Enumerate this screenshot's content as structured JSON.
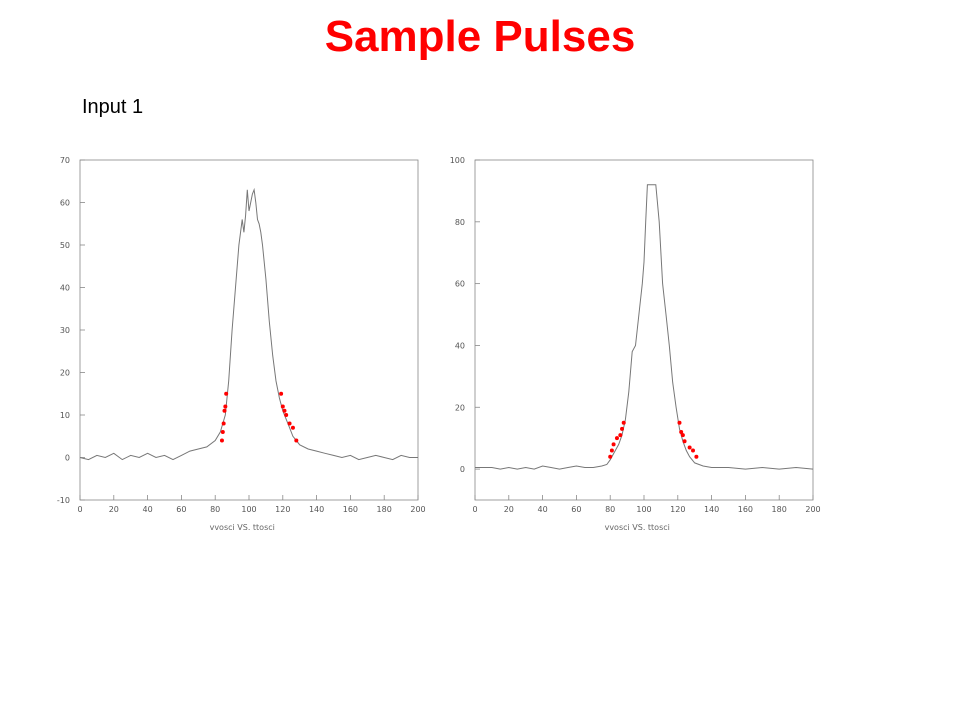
{
  "slide": {
    "title": "Sample Pulses",
    "subtitle": "Input 1",
    "accent_color": "#ff0000"
  },
  "chart_data": [
    {
      "type": "line",
      "xlabel": "vvosci VS. ttosci",
      "ylabel": "",
      "xlim": [
        0,
        200
      ],
      "ylim": [
        -10,
        70
      ],
      "xticks": [
        0,
        20,
        40,
        60,
        80,
        100,
        120,
        140,
        160,
        180,
        200
      ],
      "yticks": [
        -10,
        0,
        10,
        20,
        30,
        40,
        50,
        60,
        70
      ],
      "grid": false,
      "line_color": "#777777",
      "marker_color": "#ff0000",
      "series": [
        {
          "kind": "line",
          "x": [
            0,
            5,
            10,
            15,
            20,
            25,
            30,
            35,
            40,
            45,
            50,
            55,
            60,
            65,
            70,
            75,
            80,
            83,
            86,
            88,
            90,
            92,
            94,
            96,
            97,
            98,
            99,
            100,
            101,
            102,
            103,
            104,
            105,
            106,
            107,
            108,
            110,
            112,
            114,
            116,
            118,
            120,
            122,
            124,
            126,
            128,
            130,
            135,
            140,
            145,
            150,
            155,
            160,
            165,
            170,
            175,
            180,
            185,
            190,
            195,
            200
          ],
          "y": [
            0,
            -0.5,
            0.5,
            0,
            1,
            -0.5,
            0.5,
            0,
            1,
            0,
            0.5,
            -0.5,
            0.5,
            1.5,
            2,
            2.5,
            4,
            6,
            10,
            18,
            30,
            40,
            50,
            56,
            53,
            57,
            63,
            58,
            60,
            62,
            63,
            60,
            56,
            55,
            53,
            50,
            42,
            32,
            24,
            18,
            14,
            11,
            9,
            7,
            5,
            4,
            3,
            2,
            1.5,
            1,
            0.5,
            0,
            0.5,
            -0.5,
            0,
            0.5,
            0,
            -0.5,
            0.5,
            0,
            0
          ]
        },
        {
          "kind": "scatter",
          "x": [
            84,
            84.5,
            85,
            85.5,
            86,
            86.5,
            119,
            120,
            121,
            122,
            124,
            126,
            128
          ],
          "y": [
            4,
            6,
            8,
            11,
            12,
            15,
            15,
            12,
            11,
            10,
            8,
            7,
            4
          ]
        }
      ]
    },
    {
      "type": "line",
      "xlabel": "vvosci VS. ttosci",
      "ylabel": "",
      "xlim": [
        0,
        200
      ],
      "ylim": [
        -10,
        100
      ],
      "xticks": [
        0,
        20,
        40,
        60,
        80,
        100,
        120,
        140,
        160,
        180,
        200
      ],
      "yticks": [
        0,
        20,
        40,
        60,
        80,
        100
      ],
      "grid": false,
      "line_color": "#777777",
      "marker_color": "#ff0000",
      "series": [
        {
          "kind": "line",
          "x": [
            0,
            5,
            10,
            15,
            20,
            25,
            30,
            35,
            40,
            45,
            50,
            55,
            60,
            65,
            70,
            75,
            78,
            80,
            82,
            85,
            87,
            89,
            91,
            93,
            95,
            97,
            99,
            100,
            101,
            102,
            103,
            104,
            105,
            106,
            107,
            109,
            111,
            113,
            115,
            117,
            119,
            121,
            123,
            125,
            127,
            130,
            135,
            140,
            150,
            160,
            170,
            180,
            190,
            200
          ],
          "y": [
            0.5,
            0.5,
            0.5,
            0,
            0.5,
            0,
            0.5,
            0,
            1,
            0.5,
            0,
            0.5,
            1,
            0.5,
            0.5,
            1,
            1.5,
            3,
            5,
            8,
            11,
            16,
            25,
            38,
            40,
            50,
            60,
            67,
            80,
            92,
            92,
            92,
            92,
            92,
            92,
            80,
            60,
            50,
            40,
            28,
            20,
            13,
            9,
            6,
            4,
            2,
            1,
            0.5,
            0.5,
            0,
            0.5,
            0,
            0.5,
            0
          ]
        },
        {
          "kind": "scatter",
          "x": [
            80,
            81,
            82,
            84,
            86,
            87,
            88,
            121,
            122,
            123,
            124,
            127,
            129,
            131
          ],
          "y": [
            4,
            6,
            8,
            10,
            11,
            13,
            15,
            15,
            12,
            11,
            9,
            7,
            6,
            4
          ]
        }
      ]
    }
  ]
}
